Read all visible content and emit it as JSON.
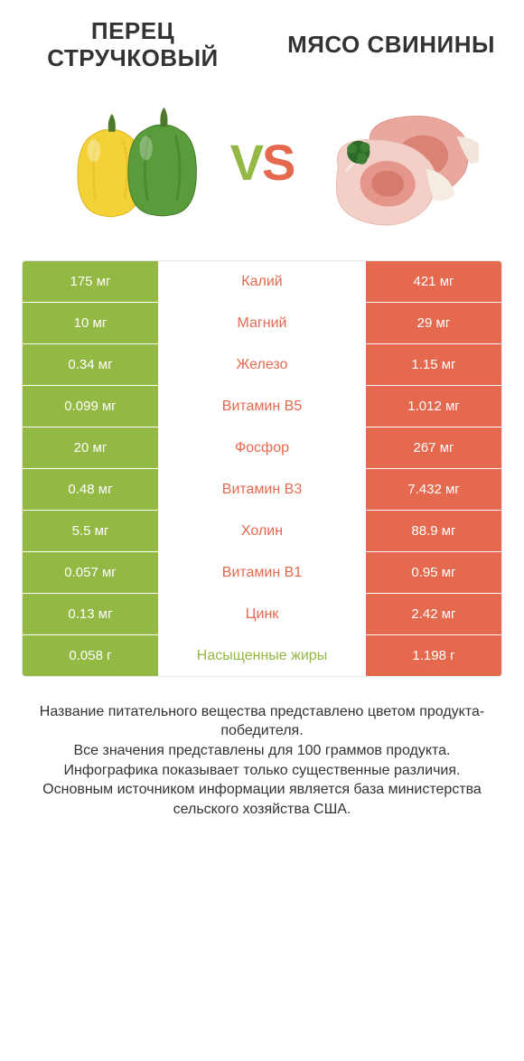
{
  "titles": {
    "left": "ПЕРЕЦ СТРУЧКОВЫЙ",
    "right": "МЯСО СВИНИНЫ"
  },
  "vs": {
    "v": "V",
    "s": "S"
  },
  "colors": {
    "left": "#93b844",
    "right": "#e5694e",
    "pepper_yellow": "#f4d237",
    "pepper_green": "#5a9b3c",
    "stem": "#4a7a2a",
    "pork_light": "#f3cfc8",
    "pork_mid": "#e9a79d",
    "pork_dark": "#d77b6d",
    "herb": "#2e6b2a",
    "bg": "#ffffff"
  },
  "rows": [
    {
      "left": "175 мг",
      "label": "Калий",
      "right": "421 мг",
      "winner": "right"
    },
    {
      "left": "10 мг",
      "label": "Магний",
      "right": "29 мг",
      "winner": "right"
    },
    {
      "left": "0.34 мг",
      "label": "Железо",
      "right": "1.15 мг",
      "winner": "right"
    },
    {
      "left": "0.099 мг",
      "label": "Витамин B5",
      "right": "1.012 мг",
      "winner": "right"
    },
    {
      "left": "20 мг",
      "label": "Фосфор",
      "right": "267 мг",
      "winner": "right"
    },
    {
      "left": "0.48 мг",
      "label": "Витамин B3",
      "right": "7.432 мг",
      "winner": "right"
    },
    {
      "left": "5.5 мг",
      "label": "Холин",
      "right": "88.9 мг",
      "winner": "right"
    },
    {
      "left": "0.057 мг",
      "label": "Витамин B1",
      "right": "0.95 мг",
      "winner": "right"
    },
    {
      "left": "0.13 мг",
      "label": "Цинк",
      "right": "2.42 мг",
      "winner": "right"
    },
    {
      "left": "0.058 г",
      "label": "Насыщенные жиры",
      "right": "1.198 г",
      "winner": "left"
    }
  ],
  "footer": {
    "l1": "Название питательного вещества представлено цветом продукта-победителя.",
    "l2": "Все значения представлены для 100 граммов продукта.",
    "l3": "Инфографика показывает только существенные различия.",
    "l4": "Основным источником информации является база министерства сельского хозяйства США."
  }
}
